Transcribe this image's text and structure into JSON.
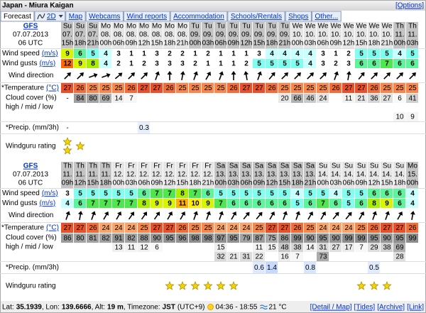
{
  "header": {
    "title": "Japan - Miura Kaigan",
    "options": "[Options]"
  },
  "tabs": [
    "Forecast",
    "2D",
    "Map",
    "Webcams",
    "Wind reports",
    "Accommodation",
    "Schools/Rentals",
    "Shops",
    "Other..."
  ],
  "labels": {
    "wind_speed": "Wind speed",
    "wind_unit": "(m/s)",
    "wind_gusts": "Wind gusts",
    "wind_direction": "Wind direction",
    "temperature": "*Temperature",
    "temp_unit": "(°C)",
    "cloud_cover": "Cloud cover (%)",
    "cloud_levels": "high / mid / low",
    "precip": "*Precip. (mm/3h)",
    "rating": "Windguru rating"
  },
  "wind_colors": [
    "#ffffff",
    "#ffffff",
    "#ffffff",
    "#ffffff",
    "#c8ffff",
    "#7ffff0",
    "#5cf59c",
    "#4ee84e",
    "#a8f000",
    "#d8f500",
    "#fff000",
    "#ffb000",
    "#ff6a00"
  ],
  "temperature_colors": {
    "24": "#f9a46b",
    "25": "#f7874b",
    "26": "#f26c38",
    "27": "#e8502a"
  },
  "star_color": "#f5d400",
  "forecasts": [
    {
      "model": "GFS",
      "date": "07.07.2013",
      "run": "06 UTC",
      "days": [
        "Su",
        "Su",
        "Su",
        "Mo",
        "Mo",
        "Mo",
        "Mo",
        "Mo",
        "Mo",
        "Mo",
        "Tu",
        "Tu",
        "Tu",
        "Tu",
        "Tu",
        "Tu",
        "Tu",
        "Tu",
        "We",
        "We",
        "We",
        "We",
        "We",
        "We",
        "We",
        "We",
        "Th",
        "Th"
      ],
      "dates": [
        "07.",
        "07.",
        "07.",
        "08.",
        "08.",
        "08.",
        "08.",
        "08.",
        "08.",
        "08.",
        "09.",
        "09.",
        "09.",
        "09.",
        "09.",
        "09.",
        "09.",
        "09.",
        "10.",
        "10.",
        "10.",
        "10.",
        "10.",
        "10.",
        "10.",
        "10.",
        "11.",
        "11."
      ],
      "hours": [
        "15h",
        "18h",
        "21h",
        "00h",
        "06h",
        "09h",
        "12h",
        "15h",
        "18h",
        "21h",
        "00h",
        "03h",
        "06h",
        "09h",
        "12h",
        "15h",
        "18h",
        "21h",
        "00h",
        "03h",
        "06h",
        "09h",
        "12h",
        "15h",
        "18h",
        "21h",
        "00h",
        "03h"
      ],
      "wind_speed": [
        9,
        6,
        5,
        4,
        3,
        1,
        1,
        3,
        2,
        2,
        1,
        2,
        1,
        1,
        1,
        3,
        4,
        4,
        4,
        4,
        3,
        1,
        2,
        5,
        5,
        5,
        4,
        5
      ],
      "wind_gusts": [
        12,
        9,
        8,
        4,
        2,
        1,
        2,
        3,
        3,
        3,
        2,
        1,
        1,
        1,
        2,
        5,
        5,
        5,
        5,
        4,
        3,
        2,
        3,
        6,
        6,
        7,
        6,
        6
      ],
      "wind_direction": [
        225,
        225,
        250,
        250,
        230,
        225,
        225,
        200,
        180,
        190,
        200,
        210,
        200,
        180,
        170,
        200,
        220,
        225,
        225,
        225,
        225,
        200,
        190,
        220,
        225,
        225,
        225,
        225
      ],
      "temperature": [
        27,
        26,
        25,
        25,
        25,
        26,
        27,
        27,
        26,
        25,
        25,
        25,
        25,
        26,
        27,
        27,
        26,
        25,
        25,
        25,
        25,
        26,
        27,
        27,
        26,
        25,
        25,
        25
      ],
      "cloud_high": [
        "-",
        84,
        80,
        69,
        14,
        7,
        null,
        null,
        null,
        null,
        null,
        null,
        null,
        null,
        null,
        null,
        null,
        20,
        66,
        46,
        24,
        null,
        11,
        21,
        36,
        27,
        6,
        41
      ],
      "cloud_mid": [
        null,
        null,
        null,
        null,
        null,
        null,
        null,
        null,
        null,
        null,
        null,
        null,
        null,
        null,
        null,
        null,
        null,
        null,
        null,
        null,
        null,
        null,
        null,
        null,
        null,
        null,
        null,
        null
      ],
      "cloud_low": [
        null,
        null,
        null,
        null,
        null,
        null,
        null,
        null,
        null,
        null,
        null,
        null,
        null,
        null,
        null,
        null,
        null,
        null,
        null,
        null,
        null,
        null,
        null,
        null,
        null,
        null,
        10,
        9
      ],
      "precip": [
        "-",
        null,
        null,
        null,
        null,
        null,
        0.3,
        null,
        null,
        null,
        null,
        null,
        null,
        null,
        null,
        null,
        null,
        null,
        null,
        null,
        null,
        null,
        null,
        null,
        null,
        null,
        null,
        null
      ],
      "rating": [
        2,
        1,
        0,
        0,
        0,
        0,
        0,
        0,
        0,
        0,
        0,
        0,
        0,
        0,
        0,
        0,
        0,
        0,
        0,
        0,
        0,
        0,
        0,
        0,
        0,
        0,
        0,
        0
      ]
    },
    {
      "model": "GFS",
      "date": "07.07.2013",
      "run": "06 UTC",
      "days": [
        "Th",
        "Th",
        "Th",
        "Th",
        "Fr",
        "Fr",
        "Fr",
        "Fr",
        "Fr",
        "Fr",
        "Fr",
        "Fr",
        "Sa",
        "Sa",
        "Sa",
        "Sa",
        "Sa",
        "Sa",
        "Sa",
        "Sa",
        "Su",
        "Su",
        "Su",
        "Su",
        "Su",
        "Su",
        "Su",
        "Mo"
      ],
      "dates": [
        "11.",
        "11.",
        "11.",
        "11.",
        "12.",
        "12.",
        "12.",
        "12.",
        "12.",
        "12.",
        "12.",
        "12.",
        "13.",
        "13.",
        "13.",
        "13.",
        "13.",
        "13.",
        "13.",
        "13.",
        "14.",
        "14.",
        "14.",
        "14.",
        "14.",
        "14.",
        "14.",
        "15."
      ],
      "hours": [
        "09h",
        "12h",
        "15h",
        "18h",
        "00h",
        "03h",
        "06h",
        "09h",
        "12h",
        "15h",
        "18h",
        "21h",
        "00h",
        "03h",
        "06h",
        "09h",
        "12h",
        "15h",
        "18h",
        "21h",
        "00h",
        "03h",
        "06h",
        "09h",
        "12h",
        "15h",
        "18h",
        "00h"
      ],
      "wind_speed": [
        3,
        5,
        5,
        5,
        5,
        5,
        6,
        7,
        7,
        8,
        7,
        6,
        5,
        5,
        5,
        5,
        5,
        5,
        4,
        5,
        5,
        4,
        5,
        5,
        6,
        6,
        6,
        4
      ],
      "wind_gusts": [
        4,
        6,
        7,
        7,
        7,
        7,
        8,
        9,
        9,
        11,
        10,
        9,
        7,
        6,
        6,
        6,
        6,
        6,
        5,
        6,
        7,
        6,
        5,
        6,
        8,
        9,
        6,
        4
      ],
      "wind_direction": [
        200,
        190,
        200,
        210,
        210,
        215,
        215,
        215,
        210,
        210,
        200,
        200,
        200,
        210,
        220,
        220,
        210,
        200,
        200,
        210,
        210,
        220,
        220,
        210,
        200,
        200,
        210,
        190
      ],
      "temperature": [
        27,
        27,
        26,
        24,
        24,
        24,
        25,
        27,
        27,
        26,
        25,
        25,
        24,
        24,
        24,
        25,
        27,
        27,
        26,
        25,
        24,
        24,
        24,
        25,
        26,
        27,
        27,
        26
      ],
      "cloud_high": [
        86,
        80,
        81,
        82,
        91,
        82,
        88,
        90,
        95,
        96,
        98,
        98,
        97,
        95,
        79,
        87,
        75,
        86,
        99,
        90,
        95,
        90,
        99,
        99,
        95,
        90,
        95,
        99
      ],
      "cloud_mid": [
        null,
        null,
        null,
        null,
        13,
        11,
        12,
        6,
        null,
        null,
        null,
        null,
        15,
        null,
        null,
        11,
        15,
        48,
        38,
        14,
        31,
        27,
        17,
        7,
        29,
        38,
        69,
        null
      ],
      "cloud_low": [
        null,
        null,
        null,
        null,
        null,
        null,
        null,
        null,
        null,
        null,
        null,
        null,
        32,
        21,
        31,
        22,
        null,
        16,
        7,
        null,
        73,
        null,
        null,
        null,
        null,
        null,
        28,
        null
      ],
      "precip": [
        null,
        null,
        null,
        null,
        null,
        null,
        null,
        null,
        null,
        null,
        null,
        null,
        null,
        null,
        null,
        0.6,
        1.4,
        null,
        null,
        0.8,
        null,
        null,
        null,
        null,
        0.5,
        null,
        null,
        null
      ],
      "rating": [
        0,
        0,
        0,
        0,
        0,
        0,
        0,
        0,
        1,
        1,
        1,
        1,
        1,
        1,
        0,
        0,
        0,
        0,
        0,
        0,
        0,
        0,
        0,
        1,
        1,
        1,
        0,
        0
      ]
    }
  ],
  "footer": {
    "items": [
      "Lat:",
      "35.1939",
      ", Lon:",
      "139.6666",
      ", Alt:",
      "19 m",
      ", Timezone:",
      "JST",
      "(UTC+9)"
    ],
    "sun": "04:36 - 18:55",
    "water": "21 °C",
    "links": [
      "[Detail / Map]",
      "[Tides]",
      "[Archive]",
      "[Link]"
    ]
  }
}
